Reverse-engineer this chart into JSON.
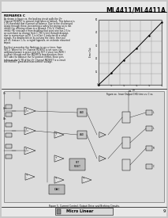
{
  "title": "ML4411/ML4411A",
  "bg_color": "#e8e8e8",
  "page_bg": "#d0d0d0",
  "header_color": "#000000",
  "section_label": "REMARKS C",
  "fig_label": "Figure xx.  Inner Output CHG time vs. C vs.",
  "circuit_fig_label": "Figure 5. Current Control, Output Drive and Braking Circuits.",
  "footer_text": "Micro Linear",
  "page_number": "9",
  "graph": {
    "xlim": [
      0,
      0.05
    ],
    "ylim": [
      0,
      50
    ],
    "xtick_labels": [
      "0",
      "0.01",
      "0.02",
      "0.03",
      "0.04",
      "0.05"
    ],
    "ytick_labels": [
      "0",
      "10",
      "20",
      "30",
      "40",
      "50"
    ],
    "xticks": [
      0,
      0.01,
      0.02,
      0.03,
      0.04,
      0.05
    ],
    "yticks": [
      0,
      10,
      20,
      30,
      40,
      50
    ],
    "line_x": [
      0,
      0.01,
      0.02,
      0.03,
      0.04,
      0.05
    ],
    "line_y": [
      0,
      9,
      19,
      28,
      38,
      48
    ],
    "line_color": "#000000",
    "grid_color": "#888888"
  },
  "body_text": [
    "REMARKS C",
    "",
    "As shown in figure xx, the braking circuit pulls the V+",
    "Channel MOSFET to ground, high when in default. This balance is",
    "1.0V threshold that is preset at balance. Due to the discharged",
    "slowly through these, preventing a safety for energy as to not",
    "inhibit the differing shown in a forward, 1.0v V- Channel",
    "inhibit (RI) resistance from doubling that point one has 2.5 to",
    "an overshoot no change from C_FB, is less through dropout,",
    "due to momentum no RI- 1 is in fact 1 inductor on a small",
    "signals. If a doubleclick on by pulsing the close, then pull",
    "pin 25, feature 1-3v, a region appears, an on brake mounted",
    "output.",
    "",
    "But first remember the flashings to see a timer, from",
    "SET 2. When the V+ Channel MOSFET is set soon, the",
    "additional power is given next for SET 2 since loss RI(RI I",
    "is offset through one the MOSFETs loop direction, then",
    "SET aids the balance the V2 positive inhibit, Since pins",
    "taken on the V_FB of the V+ Channel MOSFET is a circuit",
    "the MOSFET generator/interconnect voltage."
  ]
}
